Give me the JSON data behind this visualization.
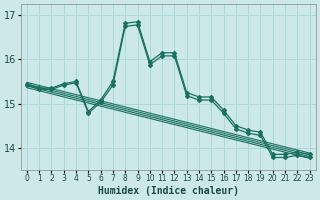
{
  "xlabel": "Humidex (Indice chaleur)",
  "bg_color": "#cce8e8",
  "grid_color": "#aad8d8",
  "line_color": "#1a7060",
  "xlim": [
    -0.5,
    23.5
  ],
  "ylim": [
    13.5,
    17.25
  ],
  "yticks": [
    14,
    15,
    16,
    17
  ],
  "xticks": [
    0,
    1,
    2,
    3,
    4,
    5,
    6,
    7,
    8,
    9,
    10,
    11,
    12,
    13,
    14,
    15,
    16,
    17,
    18,
    19,
    20,
    21,
    22,
    23
  ],
  "curve1": [
    15.45,
    15.35,
    15.35,
    15.45,
    15.5,
    14.82,
    15.08,
    15.5,
    16.82,
    16.85,
    15.95,
    16.15,
    16.15,
    15.25,
    15.15,
    15.15,
    14.85,
    14.5,
    14.4,
    14.35,
    13.85,
    13.85,
    13.9,
    13.85
  ],
  "curve2": [
    15.42,
    15.32,
    15.32,
    15.42,
    15.47,
    14.78,
    15.03,
    15.42,
    16.75,
    16.78,
    15.88,
    16.08,
    16.08,
    15.18,
    15.08,
    15.08,
    14.78,
    14.43,
    14.33,
    14.28,
    13.78,
    13.78,
    13.83,
    13.78
  ],
  "trend_lines": [
    [
      15.48,
      13.88
    ],
    [
      15.44,
      13.84
    ],
    [
      15.4,
      13.8
    ],
    [
      15.36,
      13.76
    ]
  ]
}
